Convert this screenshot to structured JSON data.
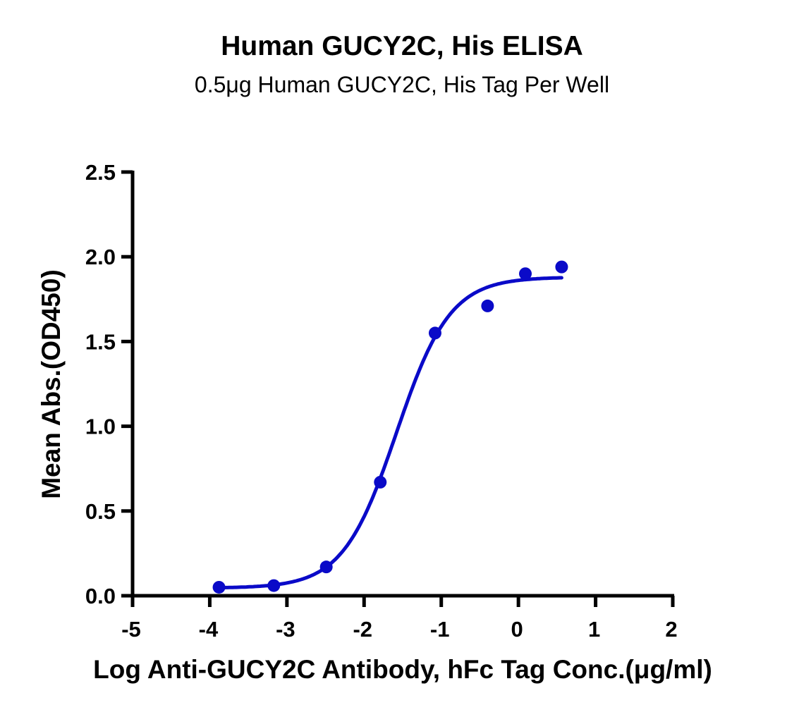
{
  "chart_data": {
    "type": "scatter",
    "title": "Human GUCY2C, His ELISA",
    "subtitle": "0.5μg Human GUCY2C, His Tag Per Well",
    "xlabel": "Log Anti-GUCY2C Antibody, hFc Tag Conc.(μg/ml)",
    "ylabel": "Mean Abs.(OD450)",
    "xlim": [
      -5,
      2
    ],
    "ylim": [
      0,
      2.5
    ],
    "x_ticks": [
      -5,
      -4,
      -3,
      -2,
      -1,
      0,
      1,
      2
    ],
    "x_tick_labels": [
      "-5",
      "-4",
      "-3",
      "-2",
      "-1",
      "0",
      "1",
      "2"
    ],
    "y_ticks": [
      0,
      0.5,
      1.0,
      1.5,
      2.0,
      2.5
    ],
    "y_tick_labels": [
      "0.0",
      "0.5",
      "1.0",
      "1.5",
      "2.0",
      "2.5"
    ],
    "grid": false,
    "legend": null,
    "series": [
      {
        "name": "Mean Abs.",
        "color": "#0a0ac8",
        "x": [
          -3.88,
          -3.17,
          -2.49,
          -1.79,
          -1.08,
          -0.4,
          0.09,
          0.56
        ],
        "y": [
          0.05,
          0.06,
          0.17,
          0.67,
          1.55,
          1.71,
          1.9,
          1.94
        ]
      }
    ],
    "fit_curve": {
      "model": "4PL",
      "bottom": 0.045,
      "top": 1.88,
      "log_ec50": -1.58,
      "hill": 1.25,
      "x_range": [
        -3.88,
        0.56
      ],
      "color": "#0a0ac8"
    }
  }
}
